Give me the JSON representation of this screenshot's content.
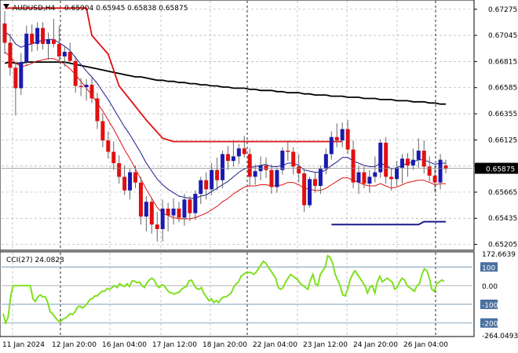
{
  "header": {
    "symbol_label": "AUDUSD,H4",
    "ohlc": "0.65904 0.65945 0.65838 0.65875"
  },
  "price_axis": {
    "ticks": [
      "0.67275",
      "0.67045",
      "0.66815",
      "0.66585",
      "0.66355",
      "0.66125",
      "0.65895",
      "0.65665",
      "0.65435",
      "0.65205"
    ],
    "current_label": "0.65875"
  },
  "cci": {
    "label": "CCI(27) 24.0823",
    "ticks": [
      "172.6639",
      "100",
      "0.00",
      "-100",
      "-200",
      "-264.0493"
    ]
  },
  "time_axis": {
    "labels": [
      "11 Jan 2024",
      "12 Jan 20:00",
      "16 Jan 04:00",
      "17 Jan 12:00",
      "18 Jan 20:00",
      "22 Jan 04:00",
      "23 Jan 12:00",
      "24 Jan 20:00",
      "26 Jan 04:00"
    ]
  },
  "colors": {
    "bull": "#1a1ab0",
    "bear": "#e01010",
    "ma_black": "#000000",
    "ma_red": "#e01010",
    "ma_navy": "#1a1a8c",
    "cci": "#7fe01f",
    "grid": "#b0b0b0",
    "current_box": "#000000"
  },
  "chart_data": [
    {
      "type": "candlestick",
      "title": "AUDUSD,H4",
      "ylim": [
        0.65195,
        0.67315
      ],
      "candles": [
        [
          0.6715,
          0.6726,
          0.6688,
          0.6698
        ],
        [
          0.6698,
          0.6706,
          0.6669,
          0.6676
        ],
        [
          0.6676,
          0.6681,
          0.6634,
          0.6658
        ],
        [
          0.6658,
          0.6689,
          0.6652,
          0.6681
        ],
        [
          0.6681,
          0.6713,
          0.6678,
          0.6706
        ],
        [
          0.6706,
          0.6714,
          0.669,
          0.6697
        ],
        [
          0.6697,
          0.6716,
          0.6691,
          0.6711
        ],
        [
          0.6711,
          0.6716,
          0.6692,
          0.6697
        ],
        [
          0.6697,
          0.6707,
          0.6683,
          0.6701
        ],
        [
          0.6701,
          0.6719,
          0.6694,
          0.6697
        ],
        [
          0.6697,
          0.6713,
          0.668,
          0.6686
        ],
        [
          0.6686,
          0.6695,
          0.6677,
          0.669
        ],
        [
          0.669,
          0.6698,
          0.668,
          0.6682
        ],
        [
          0.6682,
          0.6686,
          0.6654,
          0.666
        ],
        [
          0.666,
          0.6667,
          0.6651,
          0.6659
        ],
        [
          0.6659,
          0.6666,
          0.6647,
          0.6661
        ],
        [
          0.6661,
          0.6667,
          0.6645,
          0.6649
        ],
        [
          0.6649,
          0.6654,
          0.6622,
          0.6629
        ],
        [
          0.6629,
          0.6636,
          0.6606,
          0.6612
        ],
        [
          0.6612,
          0.662,
          0.6596,
          0.6602
        ],
        [
          0.6602,
          0.6611,
          0.6586,
          0.6592
        ],
        [
          0.6592,
          0.6599,
          0.6574,
          0.658
        ],
        [
          0.658,
          0.659,
          0.6564,
          0.6568
        ],
        [
          0.6568,
          0.6587,
          0.656,
          0.6584
        ],
        [
          0.6584,
          0.659,
          0.657,
          0.6575
        ],
        [
          0.6575,
          0.658,
          0.6538,
          0.6545
        ],
        [
          0.6545,
          0.6563,
          0.6532,
          0.6558
        ],
        [
          0.6558,
          0.6562,
          0.653,
          0.6538
        ],
        [
          0.6538,
          0.6549,
          0.6523,
          0.6534
        ],
        [
          0.6534,
          0.656,
          0.6523,
          0.6552
        ],
        [
          0.6552,
          0.6557,
          0.6532,
          0.6546
        ],
        [
          0.6546,
          0.6561,
          0.6538,
          0.6552
        ],
        [
          0.6552,
          0.6558,
          0.654,
          0.6544
        ],
        [
          0.6544,
          0.6565,
          0.6537,
          0.656
        ],
        [
          0.656,
          0.6563,
          0.6541,
          0.6548
        ],
        [
          0.6548,
          0.6568,
          0.6542,
          0.6565
        ],
        [
          0.6565,
          0.658,
          0.6556,
          0.6577
        ],
        [
          0.6577,
          0.6584,
          0.656,
          0.6569
        ],
        [
          0.6569,
          0.6592,
          0.6564,
          0.6586
        ],
        [
          0.6586,
          0.6597,
          0.6568,
          0.6577
        ],
        [
          0.6577,
          0.6603,
          0.657,
          0.66
        ],
        [
          0.66,
          0.6607,
          0.6586,
          0.6594
        ],
        [
          0.6594,
          0.6612,
          0.6589,
          0.6598
        ],
        [
          0.6598,
          0.6609,
          0.6591,
          0.6605
        ],
        [
          0.6605,
          0.6616,
          0.6597,
          0.66
        ],
        [
          0.66,
          0.6605,
          0.6572,
          0.658
        ],
        [
          0.658,
          0.6591,
          0.6573,
          0.6585
        ],
        [
          0.6585,
          0.6598,
          0.6577,
          0.659
        ],
        [
          0.659,
          0.6597,
          0.6579,
          0.6586
        ],
        [
          0.6586,
          0.6591,
          0.6565,
          0.6571
        ],
        [
          0.6571,
          0.6588,
          0.6566,
          0.6586
        ],
        [
          0.6586,
          0.6606,
          0.6582,
          0.6603
        ],
        [
          0.6603,
          0.6612,
          0.6594,
          0.6602
        ],
        [
          0.6602,
          0.6606,
          0.6582,
          0.6589
        ],
        [
          0.6589,
          0.66,
          0.6575,
          0.6583
        ],
        [
          0.6583,
          0.6587,
          0.6549,
          0.6555
        ],
        [
          0.6555,
          0.658,
          0.6553,
          0.6578
        ],
        [
          0.6578,
          0.6584,
          0.6566,
          0.6572
        ],
        [
          0.6572,
          0.659,
          0.6565,
          0.6587
        ],
        [
          0.6587,
          0.6605,
          0.6582,
          0.66
        ],
        [
          0.66,
          0.662,
          0.6595,
          0.6615
        ],
        [
          0.6615,
          0.6627,
          0.6606,
          0.6612
        ],
        [
          0.6612,
          0.6628,
          0.6606,
          0.6622
        ],
        [
          0.6622,
          0.663,
          0.66,
          0.6604
        ],
        [
          0.6604,
          0.6612,
          0.657,
          0.6575
        ],
        [
          0.6575,
          0.659,
          0.6565,
          0.6584
        ],
        [
          0.6584,
          0.6589,
          0.657,
          0.6574
        ],
        [
          0.6574,
          0.6586,
          0.6566,
          0.658
        ],
        [
          0.658,
          0.6598,
          0.6575,
          0.6584
        ],
        [
          0.6584,
          0.6613,
          0.6579,
          0.661
        ],
        [
          0.661,
          0.6615,
          0.6574,
          0.658
        ],
        [
          0.658,
          0.6588,
          0.6568,
          0.6578
        ],
        [
          0.6578,
          0.6594,
          0.6572,
          0.6588
        ],
        [
          0.6588,
          0.66,
          0.6574,
          0.6596
        ],
        [
          0.6596,
          0.6601,
          0.658,
          0.659
        ],
        [
          0.659,
          0.6605,
          0.6586,
          0.6595
        ],
        [
          0.6595,
          0.6614,
          0.6588,
          0.6603
        ],
        [
          0.6603,
          0.6612,
          0.6583,
          0.6589
        ],
        [
          0.6589,
          0.6598,
          0.6576,
          0.6581
        ],
        [
          0.6581,
          0.659,
          0.6566,
          0.6575
        ],
        [
          0.6575,
          0.66,
          0.6569,
          0.6595
        ],
        [
          0.659,
          0.6595,
          0.6583,
          0.6587
        ]
      ],
      "ma_black": [
        0.668,
        0.6681,
        0.668,
        0.668,
        0.6681,
        0.6681,
        0.6681,
        0.6681,
        0.6681,
        0.6681,
        0.6681,
        0.6681,
        0.668,
        0.6679,
        0.6678,
        0.6677,
        0.6676,
        0.6675,
        0.6674,
        0.6673,
        0.6672,
        0.6671,
        0.667,
        0.6669,
        0.6668,
        0.6668,
        0.6667,
        0.6666,
        0.6665,
        0.6665,
        0.6664,
        0.6664,
        0.6663,
        0.6663,
        0.6662,
        0.6662,
        0.6661,
        0.6661,
        0.666,
        0.666,
        0.6659,
        0.6659,
        0.6658,
        0.6658,
        0.6658,
        0.6657,
        0.6657,
        0.6656,
        0.6656,
        0.6656,
        0.6655,
        0.6655,
        0.6654,
        0.6654,
        0.6654,
        0.6653,
        0.6653,
        0.6652,
        0.6652,
        0.6652,
        0.6651,
        0.6651,
        0.6651,
        0.665,
        0.665,
        0.665,
        0.6649,
        0.6649,
        0.6649,
        0.6648,
        0.6648,
        0.6648,
        0.6647,
        0.6647,
        0.6647,
        0.6646,
        0.6646,
        0.6646,
        0.6645,
        0.6645,
        0.6644,
        0.6644
      ],
      "ma_navy": [
        0.6708,
        0.6704,
        0.6697,
        0.6694,
        0.6696,
        0.6697,
        0.6699,
        0.67,
        0.6701,
        0.6701,
        0.6698,
        0.6695,
        0.6691,
        0.6685,
        0.6679,
        0.6673,
        0.6668,
        0.6662,
        0.6655,
        0.6648,
        0.664,
        0.6632,
        0.6624,
        0.6617,
        0.6609,
        0.6601,
        0.6592,
        0.6585,
        0.6578,
        0.6573,
        0.6569,
        0.6566,
        0.6563,
        0.6562,
        0.6561,
        0.6561,
        0.6563,
        0.6564,
        0.6567,
        0.657,
        0.6573,
        0.6576,
        0.658,
        0.6584,
        0.6587,
        0.6588,
        0.6589,
        0.659,
        0.6591,
        0.6589,
        0.6589,
        0.659,
        0.6592,
        0.6592,
        0.659,
        0.6586,
        0.6585,
        0.6584,
        0.6584,
        0.6586,
        0.659,
        0.6593,
        0.6597,
        0.6597,
        0.6594,
        0.6592,
        0.659,
        0.6589,
        0.6589,
        0.6592,
        0.659,
        0.6587,
        0.6588,
        0.659,
        0.6592,
        0.6593,
        0.6595,
        0.6595,
        0.6593,
        0.6591,
        0.6592,
        0.6592
      ],
      "ma_red_env": [
        0.669,
        0.6686,
        0.668,
        0.6677,
        0.6678,
        0.668,
        0.6682,
        0.6683,
        0.6684,
        0.6684,
        0.6682,
        0.6679,
        0.6675,
        0.667,
        0.6664,
        0.6658,
        0.6652,
        0.6645,
        0.6638,
        0.663,
        0.6622,
        0.6613,
        0.6604,
        0.6596,
        0.6587,
        0.6578,
        0.6569,
        0.6561,
        0.6553,
        0.6548,
        0.6546,
        0.6544,
        0.6543,
        0.6543,
        0.6543,
        0.6544,
        0.6546,
        0.6548,
        0.6551,
        0.6554,
        0.6558,
        0.6561,
        0.6565,
        0.6568,
        0.6571,
        0.6572,
        0.6572,
        0.6573,
        0.6573,
        0.6572,
        0.6572,
        0.6573,
        0.6575,
        0.6575,
        0.6573,
        0.657,
        0.6569,
        0.6568,
        0.6568,
        0.657,
        0.6573,
        0.6576,
        0.6579,
        0.6579,
        0.6577,
        0.6575,
        0.6573,
        0.6572,
        0.6572,
        0.6574,
        0.6572,
        0.657,
        0.6571,
        0.6573,
        0.6575,
        0.6576,
        0.6577,
        0.6577,
        0.6575,
        0.6573,
        0.6574,
        0.6574
      ],
      "red_stop": [
        [
          0,
          0.67285
        ],
        [
          15,
          0.67285
        ],
        [
          16,
          0.67045
        ],
        [
          19,
          0.6688
        ],
        [
          21,
          0.666
        ],
        [
          23,
          0.6648
        ],
        [
          26,
          0.663
        ],
        [
          29,
          0.6614
        ],
        [
          31,
          0.6611
        ],
        [
          34,
          0.6611
        ],
        [
          35,
          0.6611
        ],
        [
          62,
          0.6611
        ],
        [
          62,
          0.6611
        ]
      ],
      "blue_level": {
        "from": 60,
        "to": 81,
        "y": 0.6538,
        "y2": 0.65405
      }
    },
    {
      "type": "line",
      "title": "CCI(27) 24.0823",
      "ylim": [
        -264.0493,
        172.6639
      ],
      "levels": [
        100,
        0,
        -100,
        -200
      ],
      "values": [
        -150,
        -200,
        -170,
        -60,
        0,
        0,
        0,
        0,
        0,
        0,
        0,
        0,
        -70,
        -85,
        -60,
        -50,
        -60,
        -60,
        -90,
        -140,
        -150,
        -170,
        -185,
        -195,
        -180,
        -175,
        -165,
        -150,
        -155,
        -140,
        -115,
        -110,
        -120,
        -110,
        -95,
        -75,
        -70,
        -55,
        -55,
        -40,
        -30,
        -30,
        -15,
        -20,
        -10,
        0,
        -10,
        10,
        0,
        -5,
        10,
        -5,
        25,
        25,
        15,
        20,
        0,
        -10,
        15,
        30,
        40,
        30,
        0,
        -10,
        5,
        0,
        -20,
        -35,
        -40,
        -45,
        -40,
        -35,
        -20,
        -10,
        -5,
        25,
        30,
        5,
        -15,
        -20,
        -10,
        -40,
        -60,
        -80,
        -70,
        -90,
        -80,
        -90,
        -70,
        -60,
        -60,
        -50,
        -40,
        -10,
        10,
        20,
        50,
        60,
        70,
        70,
        70,
        60,
        70,
        90,
        110,
        130,
        120,
        100,
        80,
        60,
        40,
        -10,
        -20,
        -10,
        20,
        40,
        60,
        50,
        40,
        30,
        10,
        0,
        -10,
        -20,
        30,
        60,
        10,
        0,
        60,
        80,
        100,
        160,
        150,
        120,
        60,
        30,
        0,
        -50,
        -55,
        -20,
        30,
        60,
        80,
        60,
        40,
        20,
        0,
        -40,
        -10,
        0,
        -40,
        20,
        50,
        20,
        30,
        40,
        30,
        20,
        -20,
        -10,
        20,
        40,
        30,
        0,
        -10,
        -20,
        -30,
        0,
        10,
        60,
        90,
        80,
        40,
        -20,
        -30,
        10,
        20,
        30,
        24
      ]
    }
  ]
}
